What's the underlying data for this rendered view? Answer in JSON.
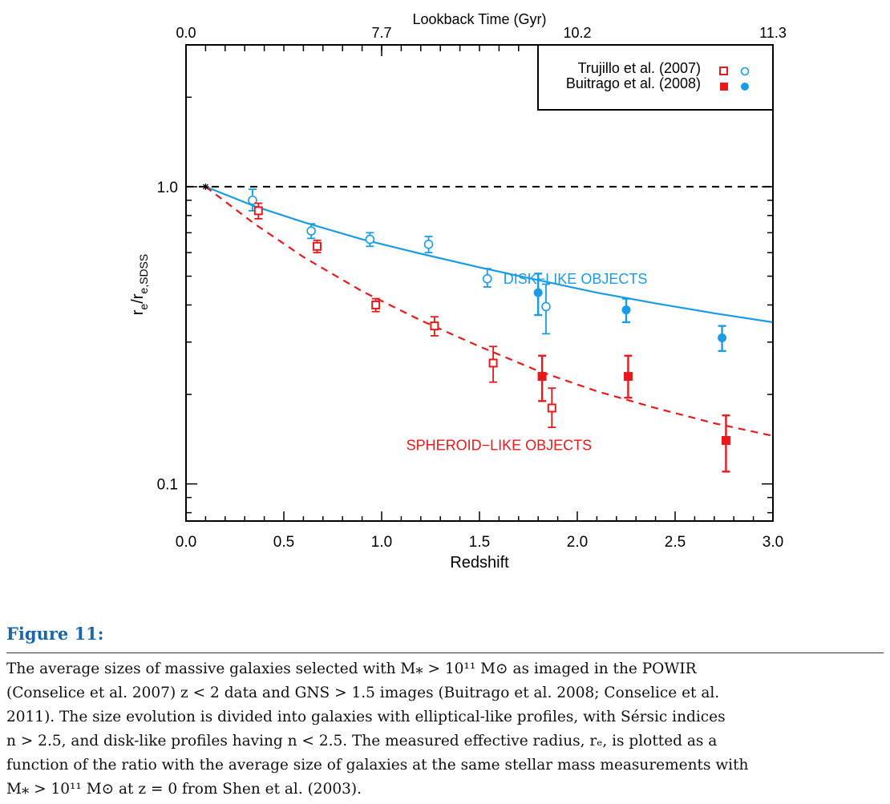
{
  "chart_data": {
    "type": "scatter",
    "xlabel": "Redshift",
    "ylabel": "r",
    "ylabel_sub1": "e",
    "ylabel_mid": "/r",
    "ylabel_sub2": "e,SDSS",
    "top_axis_label": "Lookback Time (Gyr)",
    "xlim": [
      0,
      3.0
    ],
    "ylim": [
      0.075,
      3.0
    ],
    "yscale": "log",
    "x_ticks": [
      0.0,
      0.5,
      1.0,
      1.5,
      2.0,
      2.5,
      3.0
    ],
    "x_tick_labels": [
      "0.0",
      "0.5",
      "1.0",
      "1.5",
      "2.0",
      "2.5",
      "3.0"
    ],
    "y_ticks": [
      0.1,
      1.0
    ],
    "y_tick_labels": [
      "0.1",
      "1.0"
    ],
    "top_ticks": [
      {
        "z": 0.0,
        "label": "0.0"
      },
      {
        "z": 1.0,
        "label": "7.7"
      },
      {
        "z": 2.0,
        "label": "10.2"
      },
      {
        "z": 3.0,
        "label": "11.3"
      }
    ],
    "reference_line": {
      "y": 1.0,
      "style": "dashed",
      "color": "#000000"
    },
    "start_marker": {
      "x": 0.1,
      "y": 1.0
    },
    "legend": {
      "position": "top-right",
      "entries": [
        {
          "label": "Trujillo et al. (2007)",
          "filled": false
        },
        {
          "label": "Buitrago et al. (2008)",
          "filled": true
        }
      ]
    },
    "curves": [
      {
        "label": "DISK−LIKE OBJECTS",
        "color": "#1a9be6",
        "style": "solid",
        "label_x": 1.99,
        "label_y": 0.49,
        "x": [
          0.1,
          0.35,
          0.6,
          0.9,
          1.2,
          1.5,
          1.8,
          2.1,
          2.4,
          2.7,
          3.0
        ],
        "y": [
          1.0,
          0.86,
          0.76,
          0.665,
          0.595,
          0.535,
          0.485,
          0.44,
          0.405,
          0.375,
          0.35
        ]
      },
      {
        "label": "SPHEROID−LIKE OBJECTS",
        "color": "#e8191c",
        "style": "dashed",
        "label_x": 1.6,
        "label_y": 0.135,
        "x": [
          0.1,
          0.35,
          0.6,
          0.9,
          1.2,
          1.5,
          1.8,
          2.1,
          2.4,
          2.7,
          3.0
        ],
        "y": [
          1.0,
          0.75,
          0.58,
          0.445,
          0.355,
          0.29,
          0.24,
          0.205,
          0.18,
          0.16,
          0.145
        ]
      }
    ],
    "series": [
      {
        "color": "#1a9be6",
        "marker": "circle",
        "filled": false,
        "points": [
          {
            "x": 0.34,
            "y": 0.9,
            "lo": 0.83,
            "hi": 0.98
          },
          {
            "x": 0.64,
            "y": 0.71,
            "lo": 0.67,
            "hi": 0.75
          },
          {
            "x": 0.94,
            "y": 0.665,
            "lo": 0.63,
            "hi": 0.7
          },
          {
            "x": 1.24,
            "y": 0.64,
            "lo": 0.6,
            "hi": 0.68
          },
          {
            "x": 1.54,
            "y": 0.49,
            "lo": 0.46,
            "hi": 0.53
          },
          {
            "x": 1.84,
            "y": 0.395,
            "lo": 0.32,
            "hi": 0.47
          }
        ]
      },
      {
        "color": "#1a9be6",
        "marker": "circle",
        "filled": true,
        "points": [
          {
            "x": 1.8,
            "y": 0.44,
            "lo": 0.37,
            "hi": 0.51
          },
          {
            "x": 2.25,
            "y": 0.385,
            "lo": 0.35,
            "hi": 0.42
          },
          {
            "x": 2.74,
            "y": 0.31,
            "lo": 0.28,
            "hi": 0.34
          }
        ]
      },
      {
        "color": "#e8191c",
        "marker": "square",
        "filled": false,
        "points": [
          {
            "x": 0.37,
            "y": 0.83,
            "lo": 0.78,
            "hi": 0.88
          },
          {
            "x": 0.67,
            "y": 0.63,
            "lo": 0.6,
            "hi": 0.66
          },
          {
            "x": 0.97,
            "y": 0.4,
            "lo": 0.38,
            "hi": 0.42
          },
          {
            "x": 1.27,
            "y": 0.34,
            "lo": 0.315,
            "hi": 0.365
          },
          {
            "x": 1.57,
            "y": 0.255,
            "lo": 0.22,
            "hi": 0.29
          },
          {
            "x": 1.87,
            "y": 0.18,
            "lo": 0.155,
            "hi": 0.21
          }
        ]
      },
      {
        "color": "#e8191c",
        "marker": "square",
        "filled": true,
        "points": [
          {
            "x": 1.82,
            "y": 0.23,
            "lo": 0.19,
            "hi": 0.27
          },
          {
            "x": 2.26,
            "y": 0.23,
            "lo": 0.195,
            "hi": 0.27
          },
          {
            "x": 2.76,
            "y": 0.14,
            "lo": 0.11,
            "hi": 0.17
          }
        ]
      }
    ]
  },
  "figure": {
    "label": "Figure 11:",
    "caption_lines": [
      "The average sizes of massive galaxies selected with M⁎ > 10¹¹ M⊙ as imaged in the POWIR",
      "(Conselice et al. 2007) z < 2 data and GNS > 1.5 images (Buitrago et al. 2008; Conselice et al.",
      "2011). The size evolution is divided into galaxies with elliptical-like profiles, with Sérsic indices",
      "n > 2.5, and disk-like profiles having n < 2.5. The measured effective radius, rₑ, is plotted as a",
      "function of the ratio with the average size of galaxies at the same stellar mass measurements with",
      "M⁎ > 10¹¹ M⊙ at z = 0 from Shen et al. (2003)."
    ]
  }
}
